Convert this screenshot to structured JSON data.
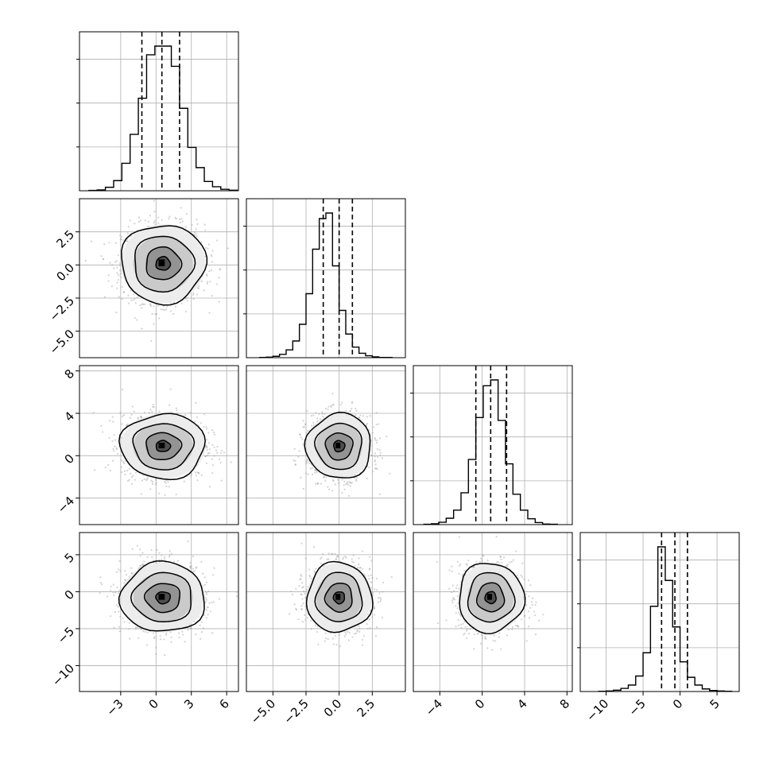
{
  "chart_data": {
    "type": "corner",
    "title": "",
    "parameters": [
      {
        "range": [
          -6.5,
          7.0
        ],
        "ticks": [
          -3,
          0,
          3,
          6
        ],
        "tick_labels": [
          "−3",
          "0",
          "3",
          "6"
        ],
        "quantiles": [
          -1.2,
          0.5,
          2.0
        ],
        "hist_bins": [
          -5.7,
          6.1,
          0.7
        ],
        "hist_counts": [
          1,
          3,
          12,
          35,
          95,
          195,
          320,
          470,
          500,
          500,
          430,
          285,
          150,
          80,
          32,
          14,
          5,
          2
        ]
      },
      {
        "range": [
          -7.0,
          5.0
        ],
        "ticks": [
          -5.0,
          -2.5,
          0.0,
          2.5
        ],
        "tick_labels": [
          "−5.0",
          "−2.5",
          "0.0",
          "2.5"
        ],
        "quantiles": [
          -1.2,
          0.0,
          1.0
        ],
        "hist_bins": [
          -6.0,
          4.0,
          0.5
        ],
        "hist_counts": [
          1,
          2,
          5,
          12,
          28,
          60,
          120,
          230,
          390,
          500,
          520,
          330,
          170,
          85,
          38,
          16,
          7,
          3,
          1,
          1
        ]
      },
      {
        "range": [
          -6.5,
          8.5
        ],
        "ticks": [
          -4,
          0,
          4,
          8
        ],
        "tick_labels": [
          "−4",
          "0",
          "4",
          "8"
        ],
        "quantiles": [
          -0.6,
          0.8,
          2.3
        ],
        "hist_bins": [
          -5.5,
          6.9,
          0.7
        ],
        "hist_counts": [
          1,
          3,
          8,
          22,
          50,
          110,
          225,
          370,
          480,
          500,
          360,
          210,
          105,
          50,
          20,
          7,
          2,
          1
        ]
      },
      {
        "range": [
          -13.5,
          8.0
        ],
        "ticks": [
          -10,
          -5,
          0,
          5
        ],
        "tick_labels": [
          "−10",
          "−5",
          "0",
          "5"
        ],
        "quantiles": [
          -2.5,
          -0.7,
          1.0
        ],
        "hist_bins": [
          -11.0,
          7.0,
          1.0
        ],
        "hist_counts": [
          1,
          2,
          5,
          12,
          25,
          60,
          150,
          330,
          560,
          430,
          250,
          115,
          55,
          25,
          10,
          4,
          2,
          1
        ]
      }
    ],
    "pairs": [
      {
        "x": 0,
        "y": 1,
        "center": [
          0.6,
          0.1
        ],
        "spread": [
          1.75,
          1.45
        ],
        "contour_radii": [
          0.35,
          0.85,
          1.45,
          2.05
        ]
      },
      {
        "x": 0,
        "y": 2,
        "center": [
          0.6,
          0.9
        ],
        "spread": [
          1.75,
          1.5
        ],
        "contour_radii": [
          0.35,
          0.85,
          1.45,
          2.05
        ]
      },
      {
        "x": 1,
        "y": 2,
        "center": [
          0.0,
          0.9
        ],
        "spread": [
          1.2,
          1.5
        ],
        "contour_radii": [
          0.35,
          0.85,
          1.45,
          2.05
        ]
      },
      {
        "x": 0,
        "y": 3,
        "center": [
          0.6,
          -0.8
        ],
        "spread": [
          1.75,
          2.3
        ],
        "contour_radii": [
          0.35,
          0.85,
          1.45,
          2.05
        ]
      },
      {
        "x": 1,
        "y": 3,
        "center": [
          0.0,
          -0.8
        ],
        "spread": [
          1.2,
          2.3
        ],
        "contour_radii": [
          0.35,
          0.85,
          1.45,
          2.05
        ]
      },
      {
        "x": 2,
        "y": 3,
        "center": [
          0.8,
          -0.8
        ],
        "spread": [
          1.5,
          2.3
        ],
        "contour_radii": [
          0.35,
          0.85,
          1.45,
          2.05
        ]
      }
    ],
    "hist_line_color": "#000000",
    "scatter_color": "#9e9e9e",
    "contour_color": "#000000",
    "density_colormap": [
      "#ffffff",
      "#000000"
    ],
    "grid": true,
    "legend": "none"
  }
}
